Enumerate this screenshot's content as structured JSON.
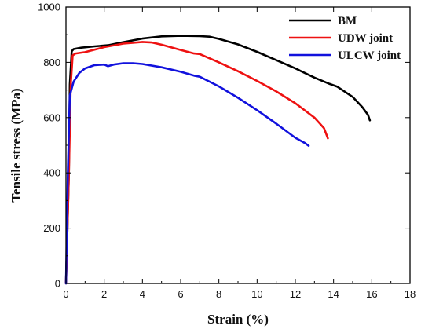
{
  "chart_data": {
    "type": "line",
    "title": "",
    "xlabel": "Strain (%)",
    "ylabel": "Tensile stress (MPa)",
    "xlim": [
      0,
      18
    ],
    "ylim": [
      0,
      1000
    ],
    "xticks": [
      0,
      2,
      4,
      6,
      8,
      10,
      12,
      14,
      16,
      18
    ],
    "yticks": [
      0,
      200,
      400,
      600,
      800,
      1000
    ],
    "grid": false,
    "legend": "top-right",
    "series": [
      {
        "name": "BM",
        "color": "#000000",
        "x": [
          0,
          0.15,
          0.2,
          0.3,
          0.4,
          0.8,
          1.5,
          2.2,
          3,
          4,
          5,
          6,
          7,
          7.5,
          8,
          9,
          10,
          11,
          12,
          13,
          13.8,
          14.2,
          15,
          15.5,
          15.8,
          15.9
        ],
        "y": [
          0,
          400,
          720,
          840,
          848,
          853,
          858,
          862,
          873,
          886,
          894,
          896,
          895,
          893,
          885,
          865,
          838,
          808,
          778,
          745,
          722,
          712,
          675,
          638,
          610,
          590
        ]
      },
      {
        "name": "UDW joint",
        "color": "#ee1111",
        "x": [
          0,
          0.15,
          0.25,
          0.35,
          0.5,
          1,
          2,
          3,
          4,
          4.5,
          5,
          6,
          6.7,
          7,
          8,
          9,
          10,
          11,
          12,
          13,
          13.5,
          13.7
        ],
        "y": [
          0,
          400,
          720,
          825,
          832,
          837,
          855,
          868,
          874,
          872,
          864,
          845,
          832,
          830,
          800,
          768,
          733,
          695,
          652,
          600,
          562,
          525
        ]
      },
      {
        "name": "ULCW joint",
        "color": "#1111dd",
        "x": [
          0,
          0.1,
          0.2,
          0.4,
          0.7,
          1,
          1.5,
          2,
          2.2,
          2.5,
          3,
          3.5,
          4,
          5,
          6,
          6.7,
          7,
          8,
          9,
          10,
          11,
          12,
          12.5,
          12.7
        ],
        "y": [
          0,
          400,
          680,
          730,
          762,
          778,
          790,
          792,
          786,
          792,
          797,
          797,
          794,
          782,
          766,
          752,
          748,
          713,
          672,
          627,
          578,
          527,
          508,
          498
        ]
      }
    ]
  }
}
